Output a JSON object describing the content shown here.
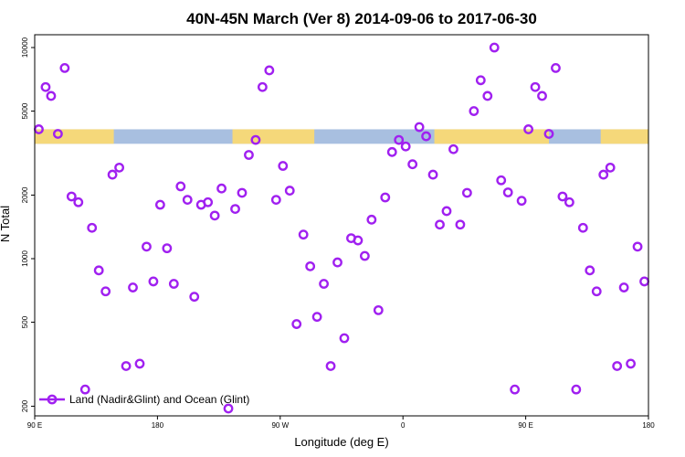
{
  "chart_data": {
    "type": "scatter",
    "title": "40N-45N March (Ver 8)   2014-09-06 to 2017-06-30",
    "xlabel": "Longitude (deg E)",
    "ylabel": "N Total",
    "y_scale": "log",
    "xlim": [
      90,
      540
    ],
    "ylim": [
      180,
      11500
    ],
    "x_ticks": [
      {
        "value": 90,
        "label": "90 E"
      },
      {
        "value": 180,
        "label": "180"
      },
      {
        "value": 270,
        "label": "90 W"
      },
      {
        "value": 360,
        "label": "0"
      },
      {
        "value": 450,
        "label": "90 E"
      },
      {
        "value": 540,
        "label": "180"
      }
    ],
    "y_ticks": [
      {
        "value": 200,
        "label": "200"
      },
      {
        "value": 500,
        "label": "500"
      },
      {
        "value": 1000,
        "label": "1000"
      },
      {
        "value": 2000,
        "label": "2000"
      },
      {
        "value": 5000,
        "label": "5000"
      },
      {
        "value": 10000,
        "label": "10000"
      }
    ],
    "legend": {
      "position": "bottom-left",
      "entries": [
        "Land (Nadir&Glint) and Ocean (Glint)"
      ]
    },
    "colors": {
      "marker": "#a020f0",
      "ocean": "#a8bfe0",
      "land": "#f5d87a"
    },
    "land_ocean_strip": {
      "y_range": [
        3500,
        4100
      ],
      "land_segments": [
        [
          90,
          148
        ],
        [
          235,
          295
        ],
        [
          383,
          467
        ],
        [
          505,
          540
        ]
      ]
    },
    "series": [
      {
        "name": "Land (Nadir&Glint) and Ocean (Glint)",
        "points": [
          [
            93,
            4100
          ],
          [
            98,
            6500
          ],
          [
            102,
            5900
          ],
          [
            107,
            3900
          ],
          [
            112,
            8000
          ],
          [
            117,
            1970
          ],
          [
            122,
            1850
          ],
          [
            127,
            240
          ],
          [
            132,
            1400
          ],
          [
            137,
            880
          ],
          [
            142,
            700
          ],
          [
            147,
            2500
          ],
          [
            152,
            2700
          ],
          [
            157,
            310
          ],
          [
            162,
            730
          ],
          [
            167,
            318
          ],
          [
            172,
            1140
          ],
          [
            177,
            780
          ],
          [
            182,
            1800
          ],
          [
            187,
            1120
          ],
          [
            192,
            760
          ],
          [
            197,
            2200
          ],
          [
            202,
            1900
          ],
          [
            207,
            660
          ],
          [
            212,
            1800
          ],
          [
            217,
            1850
          ],
          [
            222,
            1600
          ],
          [
            227,
            2150
          ],
          [
            232,
            195
          ],
          [
            237,
            1720
          ],
          [
            242,
            2050
          ],
          [
            247,
            3100
          ],
          [
            252,
            3650
          ],
          [
            257,
            6500
          ],
          [
            262,
            7800
          ],
          [
            267,
            1900
          ],
          [
            272,
            2750
          ],
          [
            277,
            2100
          ],
          [
            282,
            490
          ],
          [
            287,
            1300
          ],
          [
            292,
            920
          ],
          [
            297,
            530
          ],
          [
            302,
            760
          ],
          [
            307,
            310
          ],
          [
            312,
            960
          ],
          [
            317,
            420
          ],
          [
            322,
            1250
          ],
          [
            327,
            1220
          ],
          [
            332,
            1030
          ],
          [
            337,
            1530
          ],
          [
            342,
            570
          ],
          [
            347,
            1950
          ],
          [
            352,
            3200
          ],
          [
            357,
            3650
          ],
          [
            362,
            3400
          ],
          [
            367,
            2800
          ],
          [
            372,
            4200
          ],
          [
            377,
            3800
          ],
          [
            382,
            2500
          ],
          [
            387,
            1450
          ],
          [
            392,
            1680
          ],
          [
            397,
            3300
          ],
          [
            402,
            1450
          ],
          [
            407,
            2050
          ],
          [
            412,
            5000
          ],
          [
            417,
            7000
          ],
          [
            422,
            5900
          ],
          [
            427,
            10000
          ],
          [
            432,
            2350
          ],
          [
            437,
            2060
          ],
          [
            442,
            240
          ],
          [
            447,
            1880
          ],
          [
            452,
            4100
          ],
          [
            457,
            6500
          ],
          [
            462,
            5900
          ],
          [
            467,
            3900
          ],
          [
            472,
            8000
          ],
          [
            477,
            1970
          ],
          [
            482,
            1850
          ],
          [
            487,
            240
          ],
          [
            492,
            1400
          ],
          [
            497,
            880
          ],
          [
            502,
            700
          ],
          [
            507,
            2500
          ],
          [
            512,
            2700
          ],
          [
            517,
            310
          ],
          [
            522,
            730
          ],
          [
            527,
            318
          ],
          [
            532,
            1140
          ],
          [
            537,
            780
          ]
        ]
      }
    ]
  }
}
